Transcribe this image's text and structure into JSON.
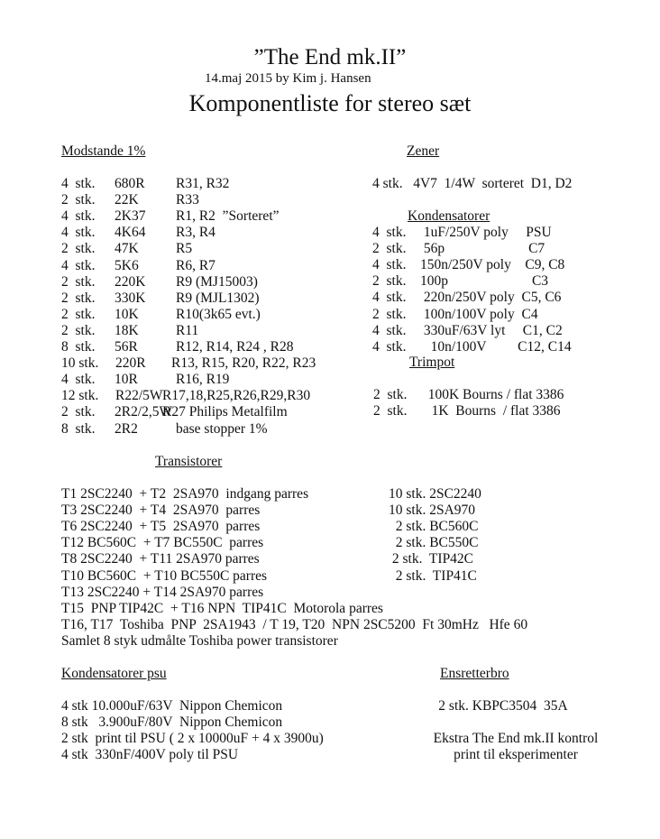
{
  "header": {
    "title": "”The End mk.II”",
    "date_author": "14.maj 2015  by Kim j. Hansen",
    "subtitle": "Komponentliste for stereo sæt"
  },
  "resistors": {
    "heading": "Modstande 1%",
    "items": [
      {
        "qty": "4  stk.",
        "value": "680R",
        "ref": "R31, R32"
      },
      {
        "qty": "2  stk.",
        "value": "22K",
        "ref": "R33"
      },
      {
        "qty": "4  stk.",
        "value": "2K37",
        "ref": "R1, R2  ”Sorteret”"
      },
      {
        "qty": "4  stk.",
        "value": "4K64",
        "ref": "R3, R4"
      },
      {
        "qty": "2  stk.",
        "value": "47K",
        "ref": "R5"
      },
      {
        "qty": "4  stk.",
        "value": "5K6",
        "ref": "R6, R7"
      },
      {
        "qty": "2  stk.",
        "value": "220K",
        "ref": "R9 (MJ15003)"
      },
      {
        "qty": "2  stk.",
        "value": "330K",
        "ref": "R9 (MJL1302)"
      },
      {
        "qty": "2  stk.",
        "value": "10K",
        "ref": "R10(3k65 evt.)"
      },
      {
        "qty": "2  stk.",
        "value": "18K",
        "ref": "R11"
      },
      {
        "qty": "8  stk.",
        "value": "56R",
        "ref": "R12, R14, R24 , R28"
      },
      {
        "qty": "10 stk.",
        "value": "220R",
        "ref": "R13, R15, R20, R22, R23"
      },
      {
        "qty": "4  stk.",
        "value": "10R",
        "ref": "R16, R19"
      },
      {
        "qty": "12 stk.",
        "value": "R22/5W",
        "ref": "R17,18,R25,R26,R29,R30"
      },
      {
        "qty": "2  stk.",
        "value": "2R2/2,5W",
        "ref": "R27 Philips Metalfilm"
      },
      {
        "qty": "8  stk.",
        "value": "2R2",
        "ref": "base stopper 1%"
      }
    ]
  },
  "zener": {
    "heading": "Zener",
    "items": [
      "4 stk.   4V7  1/4W  sorteret  D1, D2"
    ]
  },
  "capacitors": {
    "heading": "Kondensatorer",
    "items": [
      "4  stk.     1uF/250V poly     PSU",
      "2  stk.     56p                        C7",
      "4  stk.    150n/250V poly    C9, C8",
      "2  stk.    100p                        C3",
      "4  stk.     220n/250V poly  C5, C6",
      "2  stk.     100n/100V poly  C4",
      "4  stk.     330uF/63V lyt     C1, C2",
      "4  stk.       10n/100V         C12, C14"
    ]
  },
  "trimpot": {
    "heading": "Trimpot",
    "items": [
      "2  stk.      100K Bourns / flat 3386",
      "2  stk.       1K  Bourns  / flat 3386"
    ]
  },
  "transistors": {
    "heading": "Transistorer",
    "items": [
      "T1 2SC2240  + T2  2SA970  indgang parres",
      "T3 2SC2240  + T4  2SA970  parres",
      "T6 2SC2240  + T5  2SA970  parres",
      "T12 BC560C  + T7 BC550C  parres",
      "T8 2SC2240  + T11 2SA970 parres",
      "T10 BC560C  + T10 BC550C parres",
      "T13 2SC2240 + T14 2SA970 parres",
      "T15  PNP TIP42C  + T16 NPN  TIP41C  Motorola parres",
      "T16, T17  Toshiba  PNP  2SA1943  / T 19, T20  NPN 2SC5200  Ft 30mHz   Hfe 60",
      "Samlet 8 styk udmålte Toshiba power transistorer"
    ],
    "totals": [
      "10 stk. 2SC2240",
      "10 stk. 2SA970",
      "  2 stk. BC560C",
      "  2 stk. BC550C",
      " 2 stk.  TIP42C",
      "  2 stk.  TIP41C"
    ]
  },
  "psu_capacitors": {
    "heading": "Kondensatorer psu",
    "items": [
      "4 stk 10.000uF/63V  Nippon Chemicon",
      "8 stk   3.900uF/80V  Nippon Chemicon",
      "2 stk  print til PSU ( 2 x 10000uF + 4 x 3900u)",
      "4 stk  330nF/400V poly til PSU"
    ]
  },
  "rectifier": {
    "heading": "Ensretterbro",
    "items": [
      "2 stk. KBPC3504  35A"
    ],
    "extra": [
      "Ekstra The End mk.II kontrol",
      "print til eksperimenter"
    ]
  }
}
